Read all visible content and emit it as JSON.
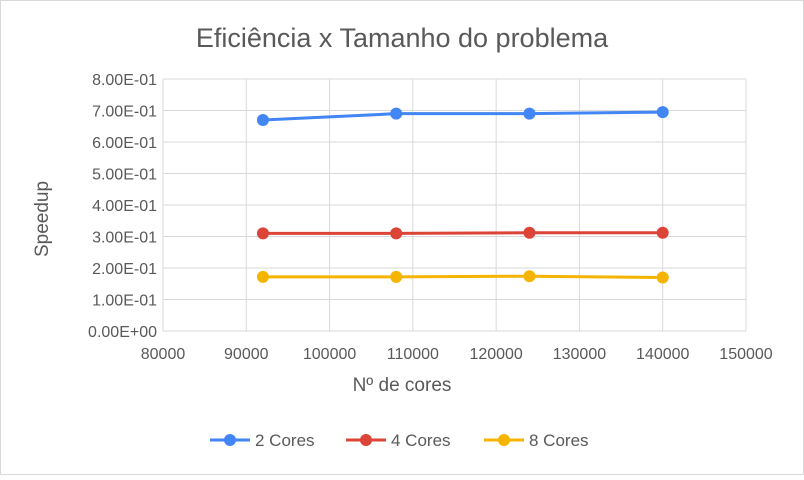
{
  "chart_data": {
    "type": "line",
    "title": "Eficiência x Tamanho do problema",
    "xlabel": "Nº de cores",
    "ylabel": "Speedup",
    "xlim": [
      80000,
      150000
    ],
    "ylim": [
      0,
      0.8
    ],
    "x_ticks": [
      "80000",
      "90000",
      "100000",
      "110000",
      "120000",
      "130000",
      "140000",
      "150000"
    ],
    "y_ticks": [
      "0.00E+00",
      "1.00E-01",
      "2.00E-01",
      "3.00E-01",
      "4.00E-01",
      "5.00E-01",
      "6.00E-01",
      "7.00E-01",
      "8.00E-01"
    ],
    "x_tick_values": [
      80000,
      90000,
      100000,
      110000,
      120000,
      130000,
      140000,
      150000
    ],
    "y_tick_values": [
      0,
      0.1,
      0.2,
      0.3,
      0.4,
      0.5,
      0.6,
      0.7,
      0.8
    ],
    "grid": true,
    "legend_position": "bottom",
    "series": [
      {
        "name": "2 Cores",
        "color": "#4285F4",
        "x": [
          92000,
          108000,
          124000,
          140000
        ],
        "y": [
          0.67,
          0.69,
          0.69,
          0.695
        ]
      },
      {
        "name": "4 Cores",
        "color": "#DB4437",
        "x": [
          92000,
          108000,
          124000,
          140000
        ],
        "y": [
          0.31,
          0.31,
          0.312,
          0.312
        ]
      },
      {
        "name": "8 Cores",
        "color": "#F4B400",
        "x": [
          92000,
          108000,
          124000,
          140000
        ],
        "y": [
          0.172,
          0.172,
          0.174,
          0.17
        ]
      }
    ]
  }
}
